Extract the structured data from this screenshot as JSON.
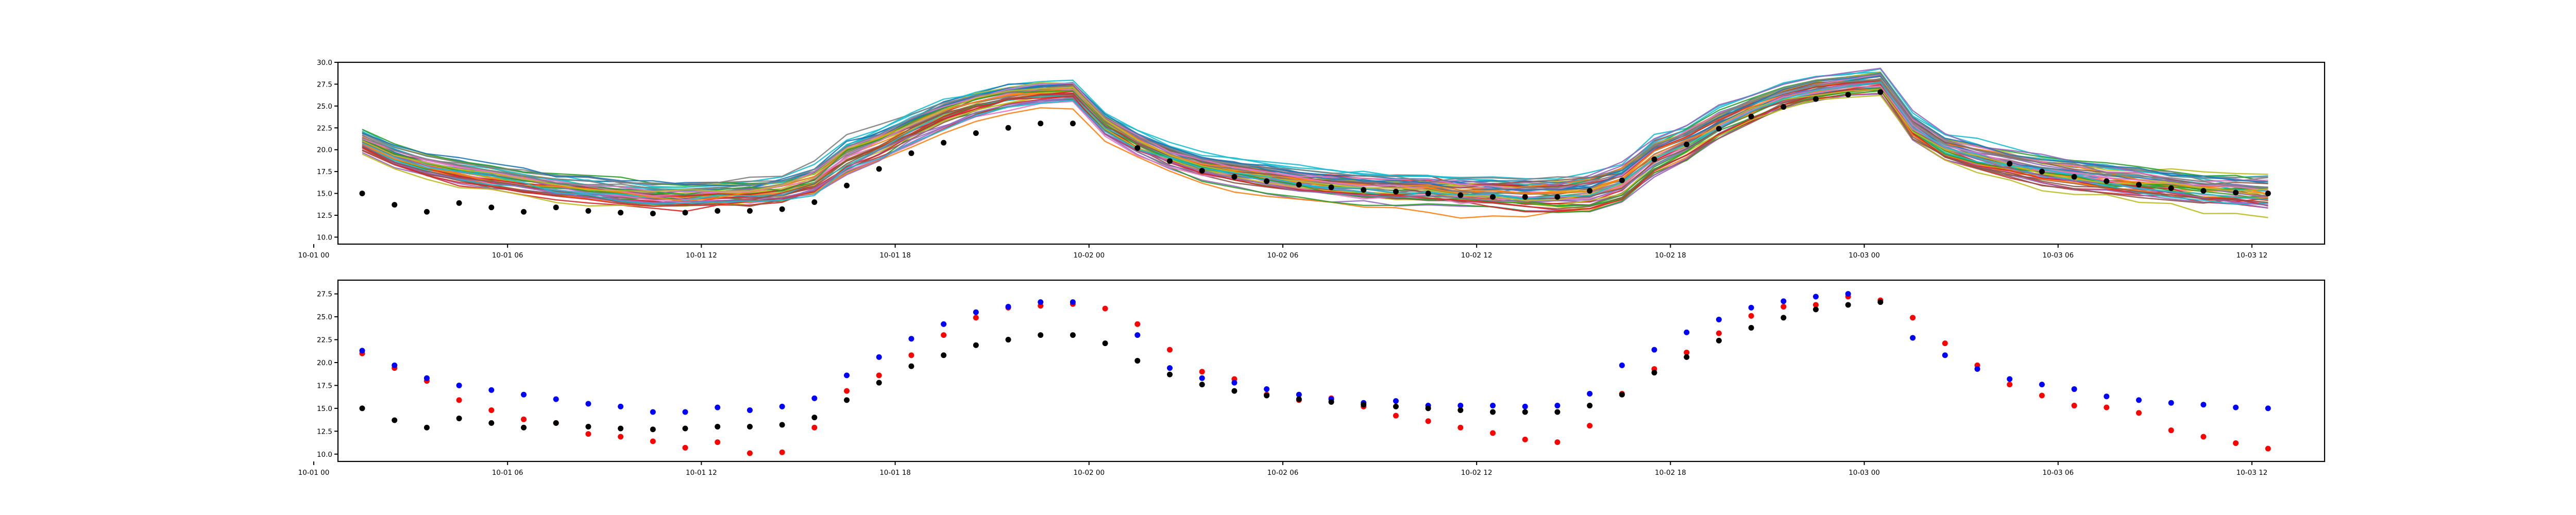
{
  "chart_data": [
    {
      "type": "line",
      "title": "",
      "xlabel": "",
      "ylabel": "",
      "xlim": [
        0.75,
        62.25
      ],
      "ylim": [
        9.2,
        30.0
      ],
      "x_ticks": [
        {
          "x": 0,
          "label": "10-01 00"
        },
        {
          "x": 6,
          "label": "10-01 06"
        },
        {
          "x": 12,
          "label": "10-01 12"
        },
        {
          "x": 18,
          "label": "10-01 18"
        },
        {
          "x": 24,
          "label": "10-02 00"
        },
        {
          "x": 30,
          "label": "10-02 06"
        },
        {
          "x": 36,
          "label": "10-02 12"
        },
        {
          "x": 42,
          "label": "10-02 18"
        },
        {
          "x": 48,
          "label": "10-03 00"
        },
        {
          "x": 54,
          "label": "10-03 06"
        },
        {
          "x": 60,
          "label": "10-03 12"
        }
      ],
      "y_ticks": [
        {
          "v": 10,
          "label": "10.0"
        },
        {
          "v": 12.5,
          "label": "12.5"
        },
        {
          "v": 15,
          "label": "15.0"
        },
        {
          "v": 17.5,
          "label": "17.5"
        },
        {
          "v": 20,
          "label": "20.0"
        },
        {
          "v": 22.5,
          "label": "22.5"
        },
        {
          "v": 25,
          "label": "25.0"
        },
        {
          "v": 27.5,
          "label": "27.5"
        },
        {
          "v": 30,
          "label": "30.0"
        }
      ],
      "grid": false,
      "ensemble_count": 50,
      "ensemble_colors": [
        "#1f77b4",
        "#ff7f0e",
        "#2ca02c",
        "#d62728",
        "#9467bd",
        "#8c564b",
        "#e377c2",
        "#7f7f7f",
        "#bcbd22",
        "#17becf"
      ],
      "x": [
        1.5,
        2.5,
        3.5,
        4.5,
        5.5,
        6.5,
        7.5,
        8.5,
        9.5,
        10.5,
        11.5,
        12.5,
        13.5,
        14.5,
        15.5,
        16.5,
        17.5,
        18.5,
        19.5,
        20.5,
        21.5,
        22.5,
        23.5,
        24.5,
        25.5,
        26.5,
        27.5,
        28.5,
        29.5,
        30.5,
        31.5,
        32.5,
        33.5,
        34.5,
        35.5,
        36.5,
        37.5,
        38.5,
        39.5,
        40.5,
        41.5,
        42.5,
        43.5,
        44.5,
        45.5,
        46.5,
        47.5,
        48.5,
        49.5,
        50.5,
        51.5,
        52.5,
        53.5,
        54.5,
        55.5,
        56.5,
        57.5,
        58.5,
        59.5,
        60.5
      ],
      "ensemble_mean": [
        21.1,
        19.4,
        18.3,
        17.6,
        17.0,
        16.4,
        15.9,
        15.6,
        15.2,
        14.9,
        14.9,
        15.1,
        15.2,
        15.5,
        16.6,
        19.3,
        20.8,
        22.6,
        24.3,
        25.5,
        26.3,
        26.7,
        26.9,
        23.2,
        21.0,
        19.4,
        18.2,
        17.6,
        17.1,
        16.5,
        16.2,
        15.9,
        15.7,
        15.6,
        15.3,
        15.2,
        15.0,
        15.0,
        15.3,
        16.4,
        19.4,
        21.0,
        23.2,
        24.8,
        26.2,
        27.0,
        27.5,
        27.8,
        22.8,
        20.3,
        19.3,
        18.5,
        17.7,
        17.2,
        16.7,
        16.3,
        15.9,
        15.4,
        15.2,
        15.0
      ],
      "ensemble_spread": [
        0.9,
        0.9,
        0.9,
        1.0,
        1.0,
        1.0,
        1.0,
        1.1,
        1.1,
        1.1,
        1.1,
        1.1,
        1.2,
        1.2,
        1.4,
        1.6,
        1.5,
        1.4,
        1.3,
        1.2,
        1.1,
        1.0,
        1.0,
        1.1,
        1.1,
        1.1,
        1.1,
        1.2,
        1.2,
        1.2,
        1.2,
        1.3,
        1.3,
        1.3,
        1.3,
        1.4,
        1.4,
        1.4,
        1.5,
        1.6,
        1.6,
        1.4,
        1.3,
        1.2,
        1.1,
        1.0,
        1.0,
        1.0,
        1.1,
        1.1,
        1.2,
        1.2,
        1.3,
        1.3,
        1.3,
        1.4,
        1.4,
        1.5,
        1.5,
        1.6
      ],
      "observed": [
        15.0,
        13.7,
        12.9,
        13.9,
        13.4,
        12.9,
        13.4,
        13.0,
        12.8,
        12.7,
        12.8,
        13.0,
        13.0,
        13.2,
        14.0,
        15.9,
        17.8,
        19.6,
        20.8,
        21.9,
        22.5,
        23.0,
        23.0,
        null,
        20.2,
        18.7,
        17.6,
        16.9,
        16.4,
        16.0,
        15.7,
        15.4,
        15.2,
        15.0,
        14.8,
        14.6,
        14.6,
        14.6,
        15.3,
        16.5,
        18.9,
        20.6,
        22.4,
        23.8,
        24.9,
        25.8,
        26.3,
        26.6,
        null,
        null,
        null,
        18.4,
        17.5,
        16.9,
        16.4,
        16.0,
        15.6,
        15.3,
        15.1,
        15.0
      ],
      "series": [
        {
          "name": "",
          "color": "#000000",
          "style": "markers",
          "values": "observed"
        },
        {
          "name": "",
          "style": "lines",
          "count": 50
        }
      ]
    },
    {
      "type": "scatter",
      "title": "",
      "xlabel": "",
      "ylabel": "",
      "xlim": [
        0.75,
        62.25
      ],
      "ylim": [
        9.2,
        29.0
      ],
      "x_ticks": [
        {
          "x": 0,
          "label": "10-01 00"
        },
        {
          "x": 6,
          "label": "10-01 06"
        },
        {
          "x": 12,
          "label": "10-01 12"
        },
        {
          "x": 18,
          "label": "10-01 18"
        },
        {
          "x": 24,
          "label": "10-02 00"
        },
        {
          "x": 30,
          "label": "10-02 06"
        },
        {
          "x": 36,
          "label": "10-02 12"
        },
        {
          "x": 42,
          "label": "10-02 18"
        },
        {
          "x": 48,
          "label": "10-03 00"
        },
        {
          "x": 54,
          "label": "10-03 06"
        },
        {
          "x": 60,
          "label": "10-03 12"
        }
      ],
      "y_ticks": [
        {
          "v": 10,
          "label": "10.0"
        },
        {
          "v": 12.5,
          "label": "12.5"
        },
        {
          "v": 15,
          "label": "15.0"
        },
        {
          "v": 17.5,
          "label": "17.5"
        },
        {
          "v": 20,
          "label": "20.0"
        },
        {
          "v": 22.5,
          "label": "22.5"
        },
        {
          "v": 25,
          "label": "25.0"
        },
        {
          "v": 27.5,
          "label": "27.5"
        }
      ],
      "grid": false,
      "x": [
        1.5,
        2.5,
        3.5,
        4.5,
        5.5,
        6.5,
        7.5,
        8.5,
        9.5,
        10.5,
        11.5,
        12.5,
        13.5,
        14.5,
        15.5,
        16.5,
        17.5,
        18.5,
        19.5,
        20.5,
        21.5,
        22.5,
        23.5,
        24.5,
        25.5,
        26.5,
        27.5,
        28.5,
        29.5,
        30.5,
        31.5,
        32.5,
        33.5,
        34.5,
        35.5,
        36.5,
        37.5,
        38.5,
        39.5,
        40.5,
        41.5,
        42.5,
        43.5,
        44.5,
        45.5,
        46.5,
        47.5,
        48.5,
        49.5,
        50.5,
        51.5,
        52.5,
        53.5,
        54.5,
        55.5,
        56.5,
        57.5,
        58.5,
        59.5,
        60.5
      ],
      "series": [
        {
          "name": "",
          "color": "#ff0000",
          "values": [
            21.0,
            19.4,
            18.0,
            15.9,
            14.8,
            13.8,
            13.4,
            12.2,
            11.9,
            11.4,
            10.7,
            11.3,
            10.1,
            10.2,
            12.9,
            16.9,
            18.6,
            20.8,
            23.0,
            24.9,
            26.0,
            26.2,
            26.4,
            25.9,
            24.2,
            21.4,
            19.0,
            18.2,
            16.5,
            15.9,
            16.1,
            15.2,
            14.2,
            13.6,
            12.9,
            12.3,
            11.6,
            11.3,
            13.1,
            16.6,
            19.3,
            21.1,
            23.2,
            25.1,
            26.1,
            26.3,
            27.2,
            26.8,
            24.9,
            22.1,
            19.7,
            17.6,
            16.4,
            15.3,
            15.1,
            14.5,
            12.6,
            11.9,
            11.2,
            10.6
          ]
        },
        {
          "name": "",
          "color": "#0000ff",
          "values": [
            21.3,
            19.7,
            18.3,
            17.5,
            17.0,
            16.5,
            16.0,
            15.5,
            15.2,
            14.6,
            14.6,
            15.1,
            14.8,
            15.2,
            16.1,
            18.6,
            20.6,
            22.6,
            24.2,
            25.5,
            26.1,
            26.6,
            26.6,
            null,
            23.0,
            19.4,
            18.3,
            17.8,
            17.1,
            16.5,
            16.0,
            15.6,
            15.8,
            15.3,
            15.3,
            15.3,
            15.2,
            15.3,
            16.6,
            19.7,
            21.4,
            23.3,
            24.7,
            26.0,
            26.7,
            27.2,
            27.5,
            null,
            22.7,
            20.8,
            19.3,
            18.2,
            17.6,
            17.1,
            16.3,
            15.9,
            15.6,
            15.4,
            15.1,
            15.0
          ]
        },
        {
          "name": "",
          "color": "#000000",
          "values": [
            15.0,
            13.7,
            12.9,
            13.9,
            13.4,
            12.9,
            13.4,
            13.0,
            12.8,
            12.7,
            12.8,
            13.0,
            13.0,
            13.2,
            14.0,
            15.9,
            17.8,
            19.6,
            20.8,
            21.9,
            22.5,
            23.0,
            23.0,
            22.1,
            20.2,
            18.7,
            17.6,
            16.9,
            16.4,
            16.0,
            15.7,
            15.4,
            15.2,
            15.0,
            14.8,
            14.6,
            14.6,
            14.6,
            15.3,
            16.5,
            18.9,
            20.6,
            22.4,
            23.8,
            24.9,
            25.8,
            26.3,
            26.6,
            null,
            null,
            null,
            null,
            null,
            null,
            null,
            null,
            null,
            null,
            null,
            null
          ]
        }
      ]
    }
  ]
}
